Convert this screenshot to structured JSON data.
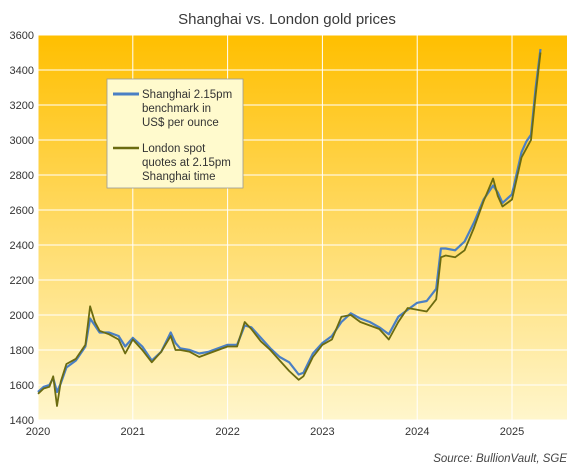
{
  "chart_data": {
    "type": "line",
    "title": "Shanghai vs. London gold prices",
    "source": "Source: BullionVault, SGE",
    "ylim": [
      1400,
      3600
    ],
    "xlim": [
      2020,
      2025.58
    ],
    "y_ticks": [
      1400,
      1600,
      1800,
      2000,
      2200,
      2400,
      2600,
      2800,
      3000,
      3200,
      3400,
      3600
    ],
    "x_ticks": [
      2020,
      2021,
      2022,
      2023,
      2024,
      2025
    ],
    "x_tick_labels": [
      "2020",
      "2021",
      "2022",
      "2023",
      "2024",
      "2025"
    ],
    "legend_position": "top-left",
    "grid": true,
    "colors": {
      "shanghai": "#4a7fc4",
      "london": "#6b6b10",
      "bg_top": "#ffbf00",
      "bg_bottom": "#fff6cc",
      "legend_bg": "#fffacd",
      "grid": "#ffffff"
    },
    "series": [
      {
        "name": "Shanghai 2.15pm benchmark in US$ per ounce",
        "legend_lines": [
          "Shanghai 2.15pm",
          "benchmark in",
          "US$ per ounce"
        ],
        "x": [
          2020.0,
          2020.06,
          2020.12,
          2020.16,
          2020.2,
          2020.24,
          2020.3,
          2020.4,
          2020.5,
          2020.55,
          2020.6,
          2020.65,
          2020.75,
          2020.85,
          2020.92,
          2021.0,
          2021.1,
          2021.2,
          2021.3,
          2021.4,
          2021.45,
          2021.5,
          2021.6,
          2021.7,
          2021.8,
          2021.9,
          2022.0,
          2022.1,
          2022.18,
          2022.25,
          2022.35,
          2022.45,
          2022.55,
          2022.65,
          2022.75,
          2022.8,
          2022.9,
          2023.0,
          2023.1,
          2023.2,
          2023.3,
          2023.4,
          2023.5,
          2023.6,
          2023.7,
          2023.8,
          2023.9,
          2024.0,
          2024.1,
          2024.2,
          2024.25,
          2024.3,
          2024.4,
          2024.5,
          2024.6,
          2024.7,
          2024.8,
          2024.85,
          2024.9,
          2025.0,
          2025.1,
          2025.15,
          2025.2,
          2025.25,
          2025.3
        ],
        "values": [
          1560,
          1590,
          1600,
          1640,
          1560,
          1610,
          1700,
          1740,
          1820,
          1980,
          1940,
          1900,
          1900,
          1880,
          1820,
          1870,
          1820,
          1740,
          1790,
          1900,
          1840,
          1810,
          1800,
          1780,
          1790,
          1810,
          1830,
          1830,
          1940,
          1930,
          1870,
          1810,
          1760,
          1730,
          1660,
          1670,
          1780,
          1840,
          1880,
          1960,
          2010,
          1980,
          1960,
          1930,
          1890,
          1990,
          2030,
          2070,
          2080,
          2150,
          2380,
          2380,
          2370,
          2420,
          2530,
          2660,
          2740,
          2700,
          2640,
          2690,
          2930,
          2990,
          3030,
          3300,
          3520
        ]
      },
      {
        "name": "London spot quotes at 2.15pm Shanghai time",
        "legend_lines": [
          "London spot",
          "quotes at 2.15pm",
          "Shanghai time"
        ],
        "x": [
          2020.0,
          2020.06,
          2020.12,
          2020.16,
          2020.2,
          2020.24,
          2020.3,
          2020.4,
          2020.5,
          2020.55,
          2020.6,
          2020.65,
          2020.75,
          2020.85,
          2020.92,
          2021.0,
          2021.1,
          2021.2,
          2021.3,
          2021.4,
          2021.45,
          2021.5,
          2021.6,
          2021.7,
          2021.8,
          2021.9,
          2022.0,
          2022.1,
          2022.18,
          2022.25,
          2022.35,
          2022.45,
          2022.55,
          2022.65,
          2022.75,
          2022.8,
          2022.9,
          2023.0,
          2023.1,
          2023.2,
          2023.3,
          2023.4,
          2023.5,
          2023.6,
          2023.7,
          2023.8,
          2023.9,
          2024.0,
          2024.1,
          2024.2,
          2024.25,
          2024.3,
          2024.4,
          2024.5,
          2024.6,
          2024.7,
          2024.8,
          2024.85,
          2024.9,
          2025.0,
          2025.1,
          2025.15,
          2025.2,
          2025.25,
          2025.3
        ],
        "values": [
          1550,
          1580,
          1590,
          1650,
          1480,
          1620,
          1720,
          1750,
          1830,
          2050,
          1960,
          1910,
          1890,
          1860,
          1780,
          1860,
          1800,
          1730,
          1790,
          1880,
          1800,
          1800,
          1790,
          1760,
          1780,
          1800,
          1820,
          1820,
          1960,
          1920,
          1850,
          1800,
          1740,
          1680,
          1630,
          1650,
          1760,
          1830,
          1860,
          1990,
          2000,
          1960,
          1940,
          1920,
          1860,
          1960,
          2040,
          2030,
          2020,
          2090,
          2330,
          2340,
          2330,
          2370,
          2500,
          2650,
          2780,
          2680,
          2620,
          2660,
          2900,
          2950,
          3000,
          3260,
          3500
        ]
      }
    ]
  }
}
